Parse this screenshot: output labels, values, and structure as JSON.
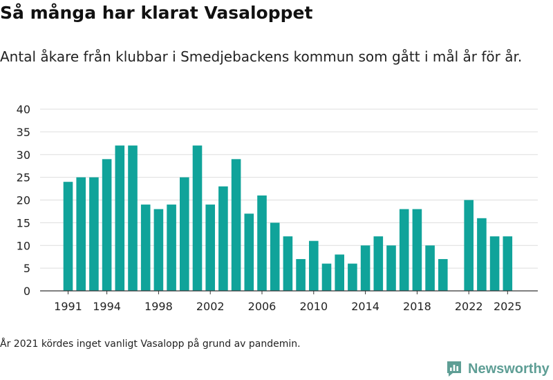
{
  "title": "Så många har klarat Vasaloppet",
  "subtitle": "Antal åkare från klubbar i Smedjebackens kommun som gått i mål år för år.",
  "footnote": "År 2021 kördes inget vanligt Vasalopp på grund av pandemin.",
  "brand": {
    "name": "Newsworthy",
    "icon": "newsworthy-logo-icon",
    "color": "#5e9e95"
  },
  "colors": {
    "bar": "#10a39a",
    "grid": "#dddddd",
    "axis": "#333333"
  },
  "chart_data": {
    "type": "bar",
    "title": "Så många har klarat Vasaloppet",
    "xlabel": "",
    "ylabel": "",
    "categories": [
      "1991",
      "1992",
      "1993",
      "1994",
      "1995",
      "1996",
      "1997",
      "1998",
      "1999",
      "2000",
      "2001",
      "2002",
      "2003",
      "2004",
      "2005",
      "2006",
      "2007",
      "2008",
      "2009",
      "2010",
      "2011",
      "2012",
      "2013",
      "2014",
      "2015",
      "2016",
      "2017",
      "2018",
      "2019",
      "2020",
      "2021",
      "2022",
      "2023",
      "2024",
      "2025"
    ],
    "values": [
      24,
      25,
      25,
      29,
      32,
      32,
      19,
      18,
      19,
      25,
      32,
      19,
      23,
      29,
      17,
      21,
      15,
      12,
      7,
      11,
      6,
      8,
      6,
      10,
      12,
      10,
      18,
      18,
      10,
      7,
      null,
      20,
      16,
      12,
      12
    ],
    "ylim": [
      0,
      40
    ],
    "yticks": [
      "0",
      "5",
      "10",
      "15",
      "20",
      "25",
      "30",
      "35",
      "40"
    ],
    "xticks": [
      "1991",
      "1994",
      "1998",
      "2002",
      "2006",
      "2010",
      "2014",
      "2018",
      "2022",
      "2025"
    ],
    "grid": true,
    "legend": "none"
  }
}
